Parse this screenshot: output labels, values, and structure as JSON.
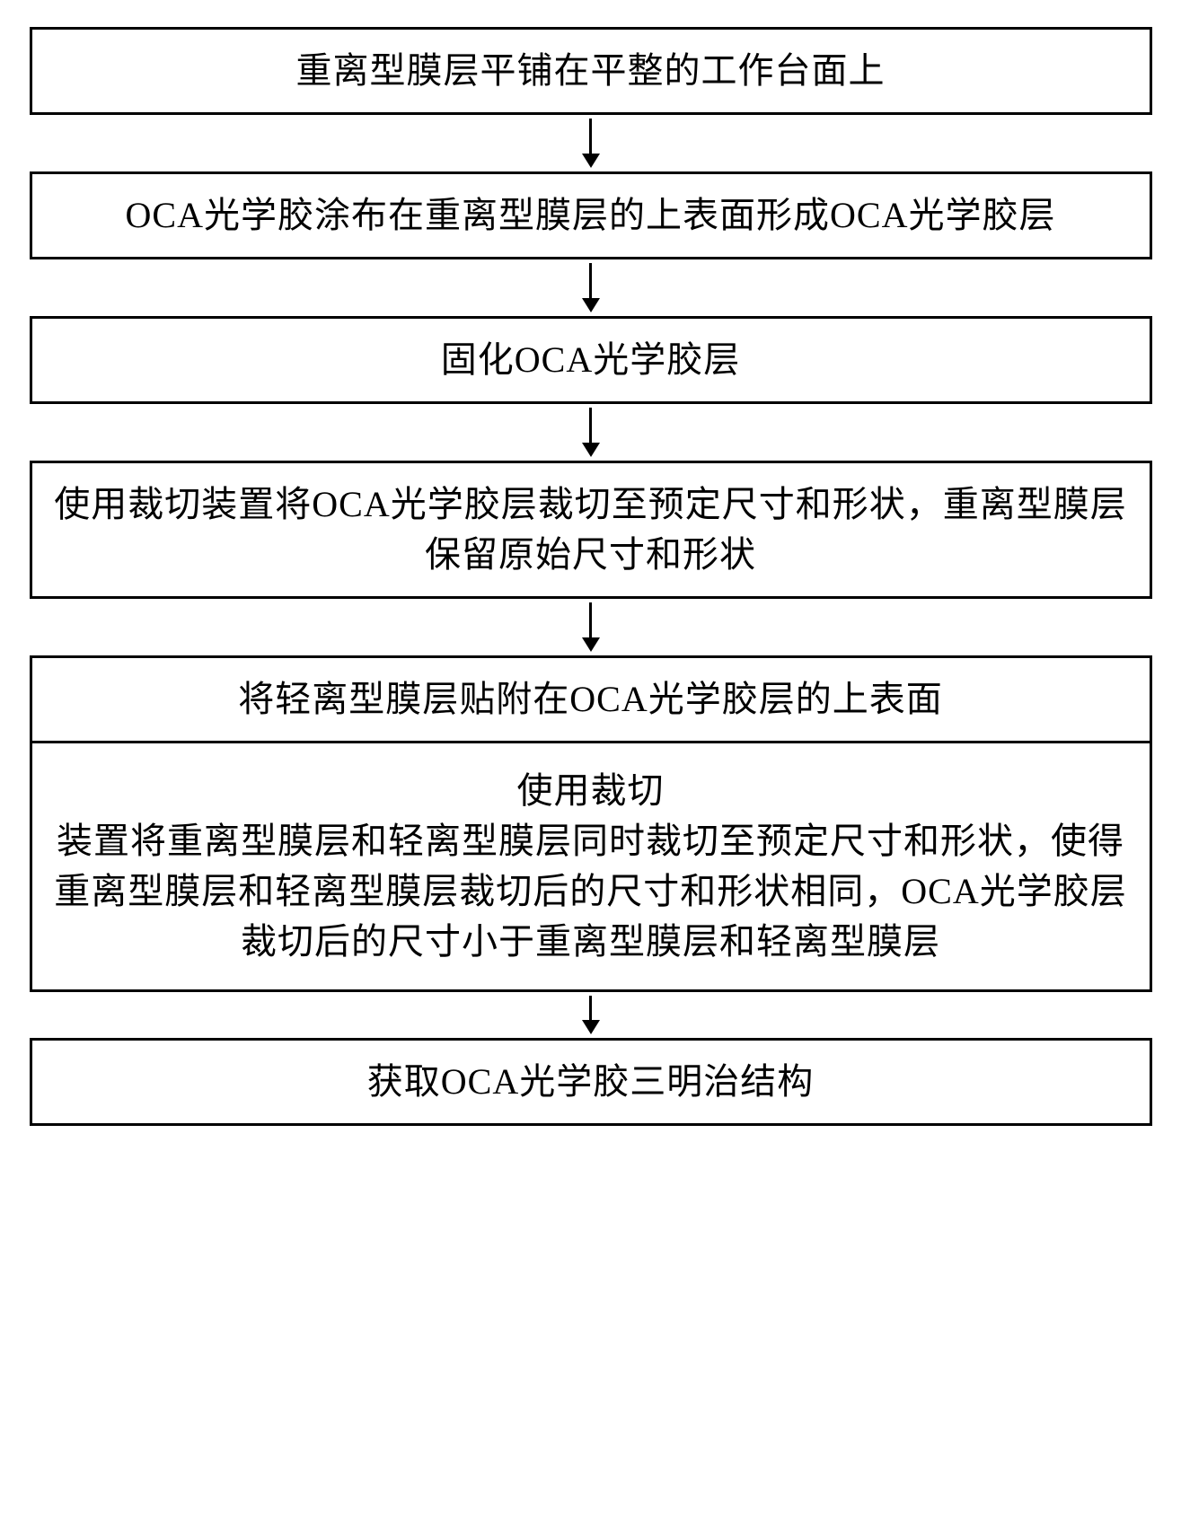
{
  "flowchart": {
    "type": "flowchart",
    "direction": "vertical",
    "background_color": "#ffffff",
    "box_border_color": "#000000",
    "box_border_width": 3,
    "arrow_color": "#000000",
    "text_color": "#000000",
    "font_size": 40,
    "font_family": "SimSun",
    "steps": [
      {
        "id": 1,
        "text": "重离型膜层平铺在平整的工作台面上"
      },
      {
        "id": 2,
        "text": "OCA光学胶涂布在重离型膜层的上表面形成OCA光学胶层"
      },
      {
        "id": 3,
        "text": "固化OCA光学胶层"
      },
      {
        "id": 4,
        "text": "使用裁切装置将OCA光学胶层裁切至预定尺寸和形状，重离型膜层保留原始尺寸和形状"
      },
      {
        "id": 5,
        "text": "将轻离型膜层贴附在OCA光学胶层的上表面"
      },
      {
        "id": 6,
        "text": "使用裁切\n装置将重离型膜层和轻离型膜层同时裁切至预定尺寸和形状，使得重离型膜层和轻离型膜层裁切后的尺寸和形状相同，OCA光学胶层裁切后的尺寸小于重离型膜层和轻离型膜层"
      },
      {
        "id": 7,
        "text": "获取OCA光学胶三明治结构"
      }
    ],
    "arrows_after": [
      1,
      2,
      3,
      4,
      5,
      6
    ],
    "notes": "Step 6 box is directly adjacent to step 5 box with no arrow between them visually, but there is a small arrow from 6 to 7"
  }
}
